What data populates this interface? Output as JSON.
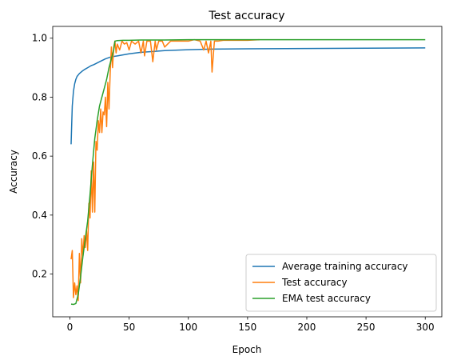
{
  "chart_data": {
    "type": "line",
    "title": "Test accuracy",
    "xlabel": "Epoch",
    "ylabel": "Accuracy",
    "xlim": [
      -14.5,
      314
    ],
    "ylim": [
      0.055,
      1.04
    ],
    "xticks": [
      0,
      50,
      100,
      150,
      200,
      250,
      300
    ],
    "yticks": [
      0.2,
      0.4,
      0.6,
      0.8,
      1.0
    ],
    "ytick_labels": [
      "0.2",
      "0.4",
      "0.6",
      "0.8",
      "1.0"
    ],
    "grid": false,
    "legend_position": "lower-right",
    "series": [
      {
        "name": "Average training accuracy",
        "color": "#1f77b4",
        "x": [
          1,
          2,
          3,
          4,
          5,
          6,
          8,
          10,
          12,
          15,
          18,
          20,
          25,
          30,
          35,
          40,
          50,
          60,
          70,
          80,
          100,
          120,
          150,
          200,
          250,
          300
        ],
        "y": [
          0.64,
          0.77,
          0.82,
          0.845,
          0.86,
          0.87,
          0.88,
          0.887,
          0.893,
          0.9,
          0.907,
          0.91,
          0.92,
          0.93,
          0.937,
          0.94,
          0.947,
          0.952,
          0.955,
          0.958,
          0.961,
          0.963,
          0.964,
          0.965,
          0.966,
          0.967
        ]
      },
      {
        "name": "Test accuracy",
        "color": "#ff7f0e",
        "x": [
          1,
          2,
          3,
          4,
          5,
          6,
          7,
          8,
          9,
          10,
          11,
          12,
          13,
          14,
          15,
          16,
          17,
          18,
          19,
          20,
          21,
          22,
          23,
          24,
          25,
          26,
          27,
          28,
          29,
          30,
          31,
          32,
          33,
          34,
          35,
          36,
          37,
          38,
          39,
          40,
          42,
          44,
          46,
          48,
          50,
          52,
          55,
          58,
          60,
          62,
          63,
          65,
          68,
          70,
          72,
          73,
          75,
          78,
          80,
          85,
          90,
          95,
          100,
          105,
          110,
          113,
          115,
          117,
          119,
          120,
          122,
          125,
          130,
          140,
          150,
          160
        ],
        "y": [
          0.25,
          0.28,
          0.12,
          0.17,
          0.13,
          0.16,
          0.11,
          0.27,
          0.17,
          0.32,
          0.26,
          0.33,
          0.29,
          0.35,
          0.28,
          0.44,
          0.39,
          0.55,
          0.41,
          0.58,
          0.41,
          0.65,
          0.62,
          0.72,
          0.68,
          0.76,
          0.68,
          0.75,
          0.74,
          0.8,
          0.7,
          0.85,
          0.76,
          0.88,
          0.97,
          0.9,
          0.97,
          0.99,
          0.95,
          0.98,
          0.96,
          0.99,
          0.98,
          0.985,
          0.96,
          0.99,
          0.98,
          0.99,
          0.95,
          0.99,
          0.94,
          0.99,
          0.99,
          0.92,
          0.99,
          0.96,
          0.99,
          0.99,
          0.97,
          0.99,
          0.99,
          0.99,
          0.99,
          0.995,
          0.99,
          0.96,
          0.99,
          0.95,
          0.99,
          0.885,
          0.99,
          0.99,
          0.993,
          0.993,
          0.993,
          0.995
        ]
      },
      {
        "name": "EMA test accuracy",
        "color": "#2ca02c",
        "x": [
          1,
          3,
          5,
          7,
          9,
          11,
          13,
          15,
          17,
          19,
          21,
          23,
          25,
          27,
          29,
          31,
          33,
          35,
          37,
          38,
          40,
          45,
          50,
          60,
          80,
          100,
          150,
          200,
          250,
          300
        ],
        "y": [
          0.098,
          0.097,
          0.1,
          0.13,
          0.19,
          0.26,
          0.32,
          0.38,
          0.47,
          0.57,
          0.66,
          0.72,
          0.77,
          0.8,
          0.83,
          0.86,
          0.9,
          0.93,
          0.96,
          0.99,
          0.992,
          0.993,
          0.993,
          0.994,
          0.994,
          0.995,
          0.995,
          0.995,
          0.995,
          0.995
        ]
      }
    ]
  }
}
